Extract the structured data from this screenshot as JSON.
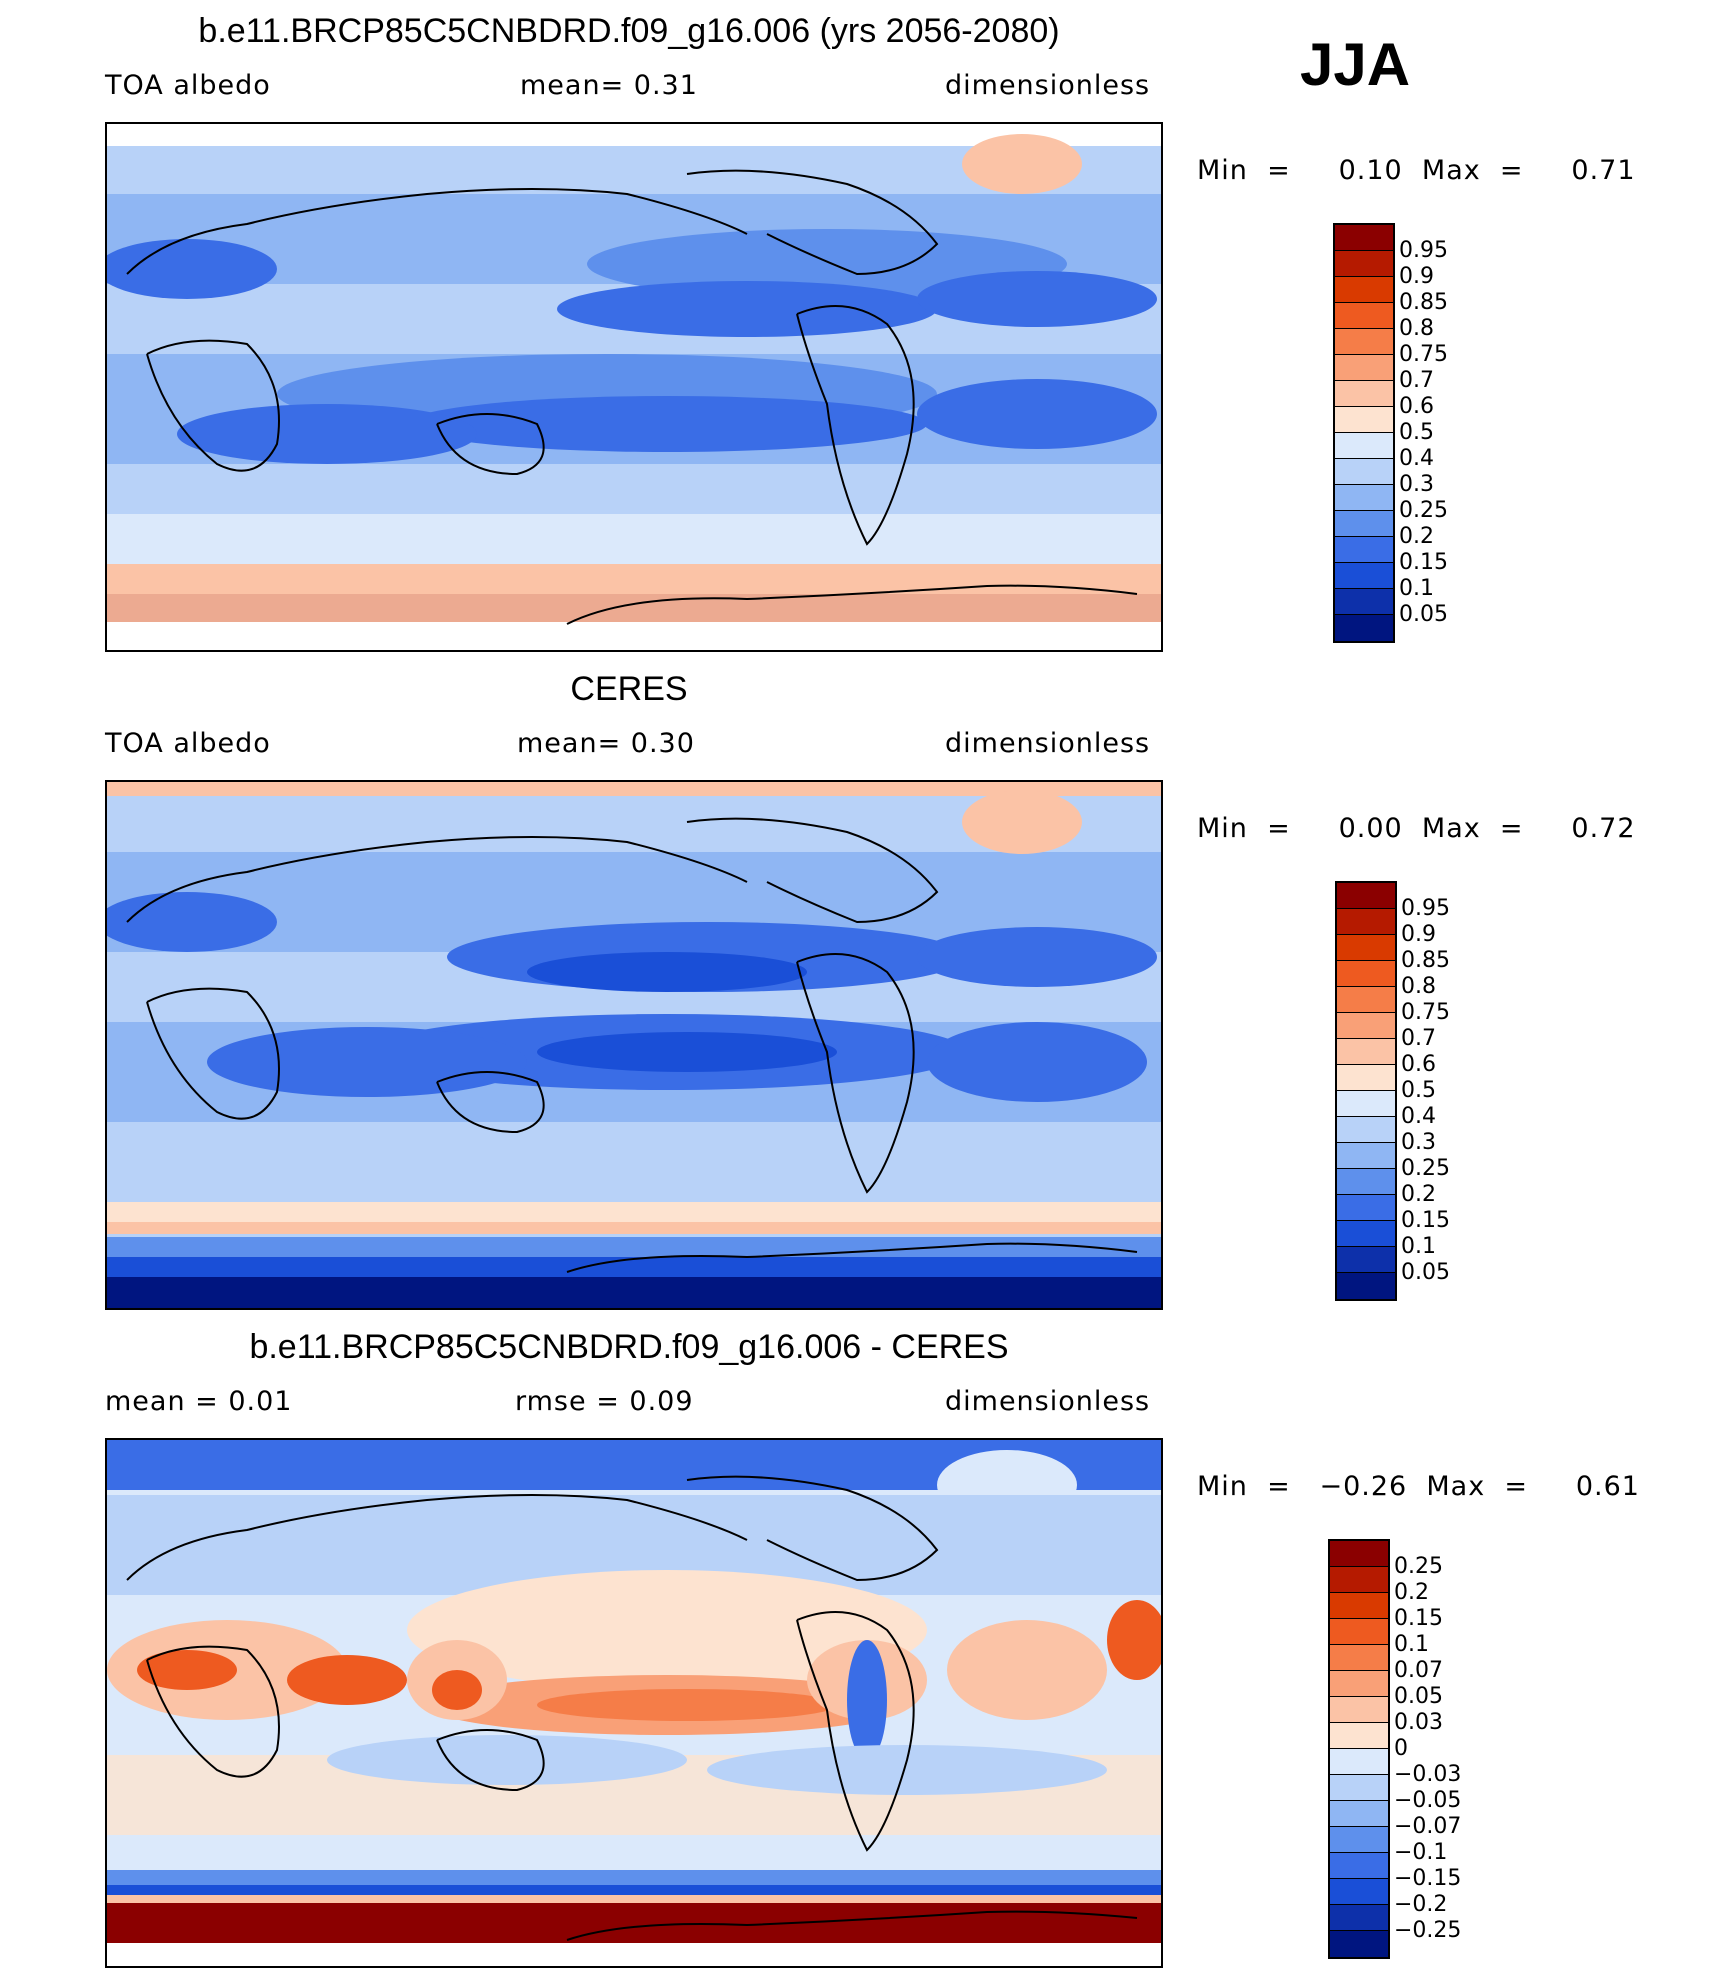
{
  "season": "JJA",
  "panels": [
    {
      "id": "model",
      "title": "b.e11.BRCP85C5CNBDRD.f09_g16.006 (yrs 2056-2080)",
      "left_label": "TOA  albedo",
      "center_label": "mean=     0.31",
      "right_label": "dimensionless",
      "minmax": "Min  =     0.10  Max  =     0.71",
      "colorbar": {
        "labels": [
          "0.95",
          "0.9",
          "0.85",
          "0.8",
          "0.75",
          "0.7",
          "0.6",
          "0.5",
          "0.4",
          "0.3",
          "0.25",
          "0.2",
          "0.15",
          "0.1",
          "0.05"
        ],
        "colors": [
          "#8b0000",
          "#b51a00",
          "#d93a00",
          "#ee5a20",
          "#f57d48",
          "#f9a077",
          "#fbc3a6",
          "#fde3d0",
          "#dbe9fb",
          "#b8d2f8",
          "#8fb6f3",
          "#5e90ec",
          "#3a6de6",
          "#1a4fd7",
          "#0d30aa",
          "#001580"
        ]
      }
    },
    {
      "id": "obs",
      "title": "CERES",
      "left_label": "TOA  albedo",
      "center_label": "mean=     0.30",
      "right_label": "dimensionless",
      "minmax": "Min  =     0.00  Max  =     0.72",
      "colorbar": {
        "labels": [
          "0.95",
          "0.9",
          "0.85",
          "0.8",
          "0.75",
          "0.7",
          "0.6",
          "0.5",
          "0.4",
          "0.3",
          "0.25",
          "0.2",
          "0.15",
          "0.1",
          "0.05"
        ],
        "colors": [
          "#8b0000",
          "#b51a00",
          "#d93a00",
          "#ee5a20",
          "#f57d48",
          "#f9a077",
          "#fbc3a6",
          "#fde3d0",
          "#dbe9fb",
          "#b8d2f8",
          "#8fb6f3",
          "#5e90ec",
          "#3a6de6",
          "#1a4fd7",
          "#0d30aa",
          "#001580"
        ]
      }
    },
    {
      "id": "diff",
      "title": "b.e11.BRCP85C5CNBDRD.f09_g16.006 - CERES",
      "left_label": "mean  =     0.01",
      "center_label": "rmse  =     0.09",
      "right_label": "dimensionless",
      "minmax": "Min  =   −0.26  Max  =     0.61",
      "colorbar": {
        "labels": [
          "0.25",
          "0.2",
          "0.15",
          "0.1",
          "0.07",
          "0.05",
          "0.03",
          "0",
          "−0.03",
          "−0.05",
          "−0.07",
          "−0.1",
          "−0.15",
          "−0.2",
          "−0.25"
        ],
        "colors": [
          "#8b0000",
          "#b51a00",
          "#d93a00",
          "#ee5a20",
          "#f57d48",
          "#f9a077",
          "#fbc3a6",
          "#fde3d0",
          "#dbe9fb",
          "#b8d2f8",
          "#8fb6f3",
          "#5e90ec",
          "#3a6de6",
          "#1a4fd7",
          "#0d30aa",
          "#001580"
        ]
      }
    }
  ]
}
